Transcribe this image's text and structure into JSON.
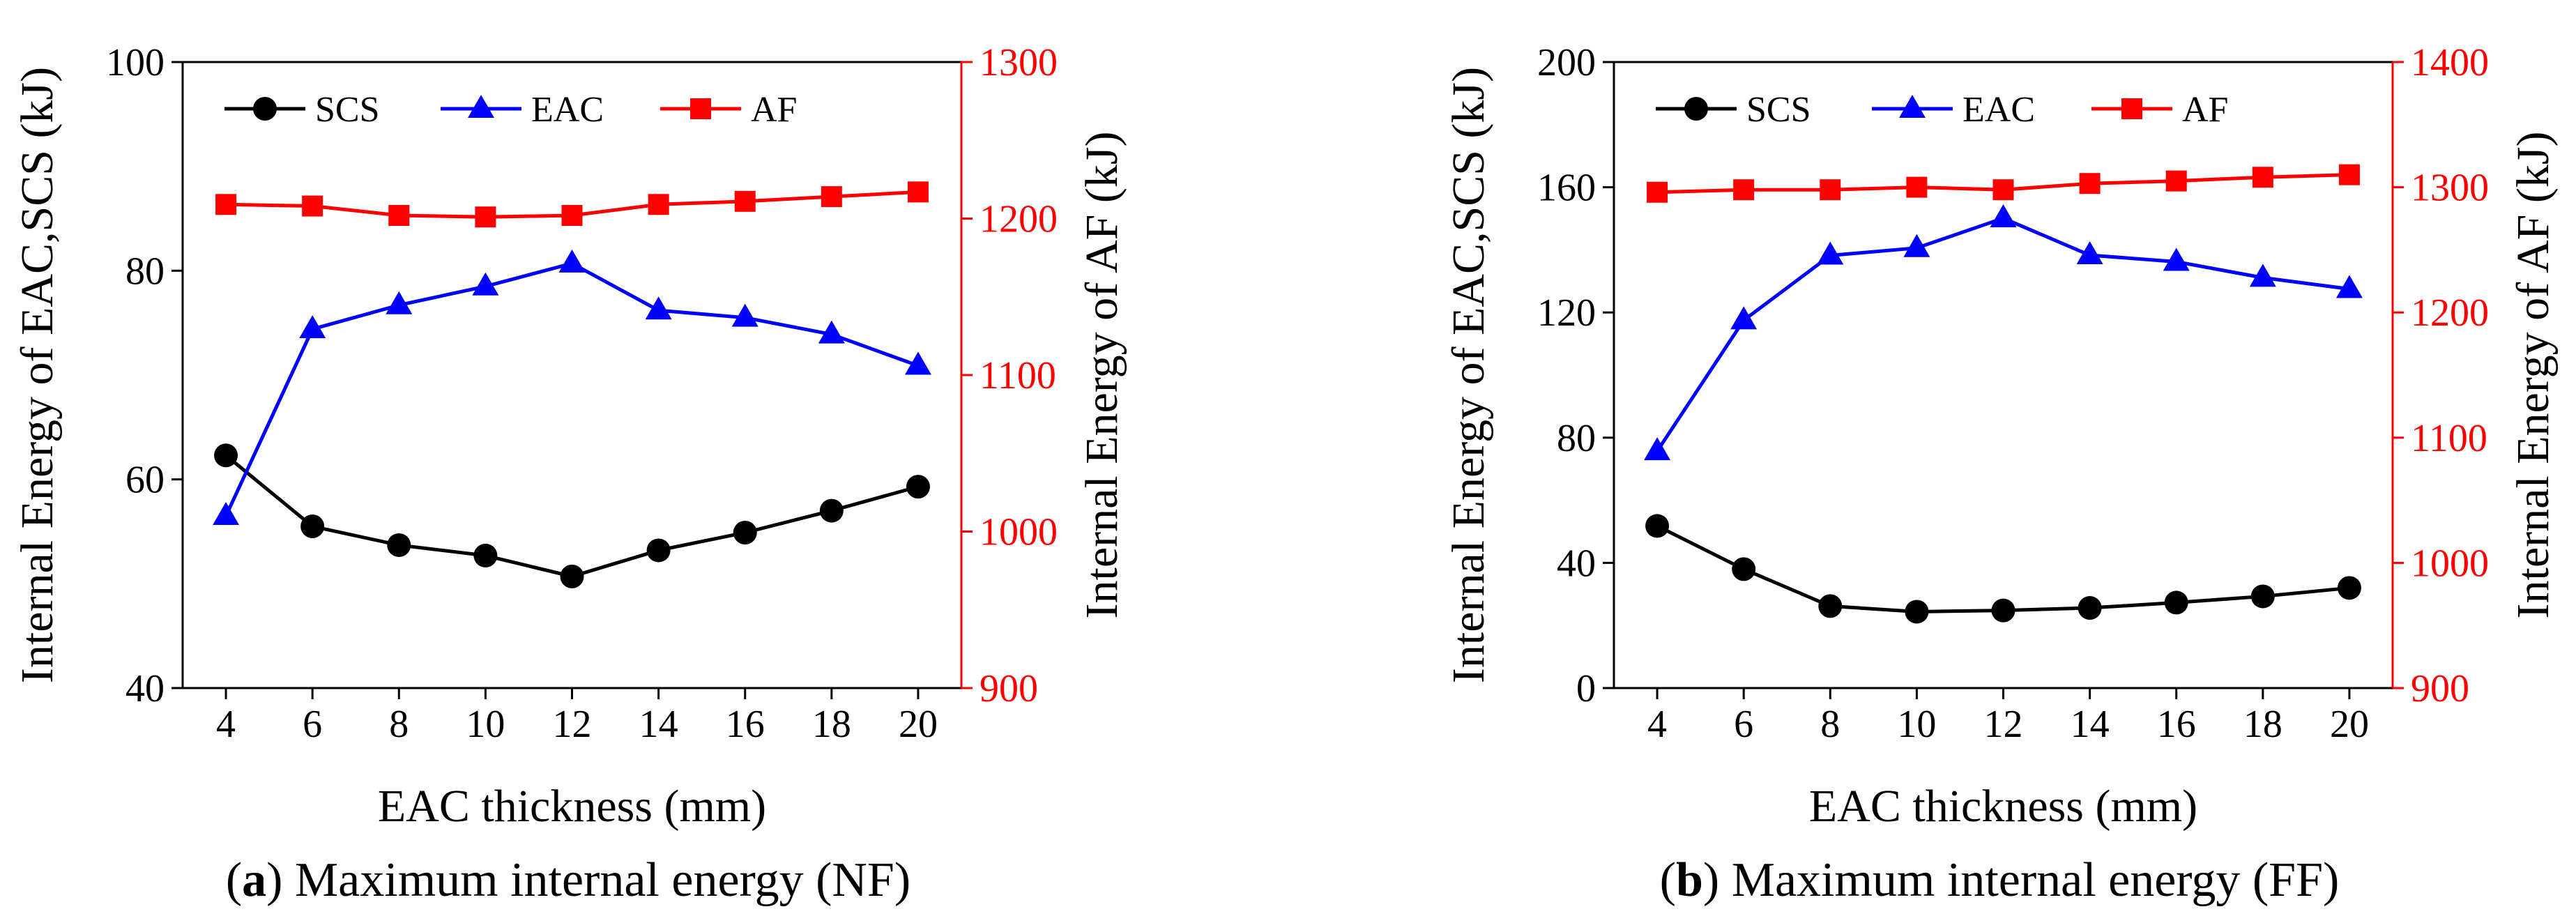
{
  "chart_data": [
    {
      "type": "line",
      "panel_letter": "a",
      "caption": "Maximum internal energy (NF)",
      "xlabel": "EAC thickness (mm)",
      "ylabel_left": "Internal Energy of EAC,SCS (kJ)",
      "ylabel_right": "Internal Energy of AF (kJ)",
      "x": [
        4,
        6,
        8,
        10,
        12,
        14,
        16,
        18,
        20
      ],
      "xlim": [
        3,
        21
      ],
      "ylim_left": [
        40,
        100
      ],
      "ylim_right": [
        900,
        1300
      ],
      "yticks_left": [
        40,
        60,
        80,
        100
      ],
      "yticks_right": [
        900,
        1000,
        1100,
        1200,
        1300
      ],
      "legend_position": "top-left",
      "series": [
        {
          "name": "SCS",
          "axis": "left",
          "color": "#000000",
          "marker": "circle",
          "values": [
            62.3,
            55.5,
            53.7,
            52.7,
            50.7,
            53.2,
            54.9,
            57.0,
            59.3
          ]
        },
        {
          "name": "EAC",
          "axis": "left",
          "color": "#0000ff",
          "marker": "triangle",
          "values": [
            56.5,
            74.4,
            76.7,
            78.5,
            80.7,
            76.2,
            75.5,
            73.9,
            70.9
          ]
        },
        {
          "name": "AF",
          "axis": "right",
          "color": "#ff0000",
          "marker": "square",
          "values": [
            1209,
            1208,
            1202,
            1201,
            1202,
            1209,
            1211,
            1214,
            1217
          ]
        }
      ]
    },
    {
      "type": "line",
      "panel_letter": "b",
      "caption": "Maximum internal energy (FF)",
      "xlabel": "EAC thickness (mm)",
      "ylabel_left": "Internal Energy of EAC,SCS (kJ)",
      "ylabel_right": "Internal Energy of AF (kJ)",
      "x": [
        4,
        6,
        8,
        10,
        12,
        14,
        16,
        18,
        20
      ],
      "xlim": [
        3,
        21
      ],
      "ylim_left": [
        0,
        200
      ],
      "ylim_right": [
        900,
        1400
      ],
      "yticks_left": [
        0,
        40,
        80,
        120,
        160,
        200
      ],
      "yticks_right": [
        900,
        1000,
        1100,
        1200,
        1300,
        1400
      ],
      "legend_position": "top-left",
      "series": [
        {
          "name": "SCS",
          "axis": "left",
          "color": "#000000",
          "marker": "circle",
          "values": [
            51.8,
            38.0,
            26.2,
            24.4,
            24.8,
            25.6,
            27.3,
            29.3,
            32.0
          ]
        },
        {
          "name": "EAC",
          "axis": "left",
          "color": "#0000ff",
          "marker": "triangle",
          "values": [
            75.7,
            117.5,
            138.2,
            140.6,
            150.1,
            138.3,
            136.2,
            131.1,
            127.5
          ]
        },
        {
          "name": "AF",
          "axis": "right",
          "color": "#ff0000",
          "marker": "square",
          "values": [
            1296,
            1298,
            1298,
            1300,
            1298,
            1303,
            1305,
            1308,
            1310
          ]
        }
      ]
    }
  ]
}
